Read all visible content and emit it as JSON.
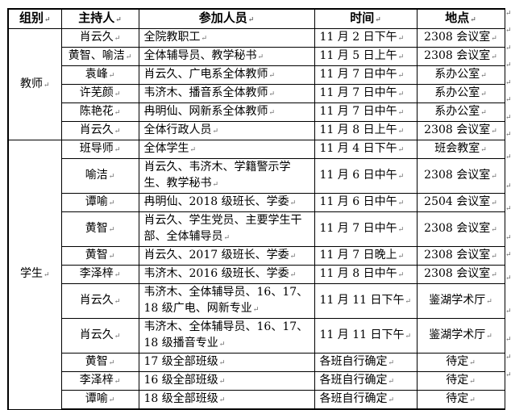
{
  "headers": [
    "组别",
    "主持人",
    "参加人员",
    "时间",
    "地点"
  ],
  "groups": [
    {
      "name": "教师",
      "rows": [
        {
          "host": "肖云久",
          "attendees": "全院教职工",
          "time": "11 月 2 日下午",
          "place": "2308 会议室"
        },
        {
          "host": "黄智、喻洁",
          "attendees": "全体辅导员、教学秘书",
          "time": "11 月 5 日上午",
          "place": "2308 会议室"
        },
        {
          "host": "袁峰",
          "attendees": "肖云久、广电系全体教师",
          "time": "11 月 7 日中午",
          "place": "系办公室"
        },
        {
          "host": "许芜颜",
          "attendees": "韦济木、播音系全体教师",
          "time": "11 月 7 日中午",
          "place": "系办公室"
        },
        {
          "host": "陈艳花",
          "attendees": "冉明仙、网新系全体教师",
          "time": "11 月 7 日中午",
          "place": "系办公室"
        },
        {
          "host": "肖云久",
          "attendees": "全体行政人员",
          "time": "11 月 8 日上午",
          "place": "2308 会议室"
        }
      ]
    },
    {
      "name": "学生",
      "rows": [
        {
          "host": "班导师",
          "attendees": "全体学生",
          "time": "11 月 4 日下午",
          "place": "班会教室"
        },
        {
          "host": "喻洁",
          "attendees": "肖云久、韦济木、学籍警示学生、教学秘书",
          "time": "11 月 6 日中午",
          "place": "2308 会议室"
        },
        {
          "host": "谭喻",
          "attendees": "冉明仙、2018 级班长、学委",
          "time": "11 月 6 日中午",
          "place": "2504 会议室"
        },
        {
          "host": "黄智",
          "attendees": "肖云久、学生党员、主要学生干部、全体辅导员",
          "time": "11 月 7 日中午",
          "place": "2308 会议室"
        },
        {
          "host": "黄智",
          "attendees": "肖云久、2017 级班长、学委",
          "time": "11 月 7 日晚上",
          "place": "2308 会议室"
        },
        {
          "host": "李泽梓",
          "attendees": "韦济木、2016 级班长、学委",
          "time": "11 月 8 日中午",
          "place": "2308 会议室"
        },
        {
          "host": "肖云久",
          "attendees": "韦济木、全体辅导员、16、17、18 级广电、网新专业",
          "time": "11 月 11 日下午",
          "place": "鉴湖学术厅"
        },
        {
          "host": "肖云久",
          "attendees": "韦济木、全体辅导员、16、17、18 级播音专业",
          "time": "11 月 11 日下午",
          "place": "鉴湖学术厅"
        },
        {
          "host": "黄智",
          "attendees": "17 级全部班级",
          "time": "各班自行确定",
          "place": "待定"
        },
        {
          "host": "李泽梓",
          "attendees": "16 级全部班级",
          "time": "各班自行确定",
          "place": "待定"
        },
        {
          "host": "谭喻",
          "attendees": "18 级全部班级",
          "time": "各班自行确定",
          "place": "待定"
        }
      ]
    }
  ]
}
